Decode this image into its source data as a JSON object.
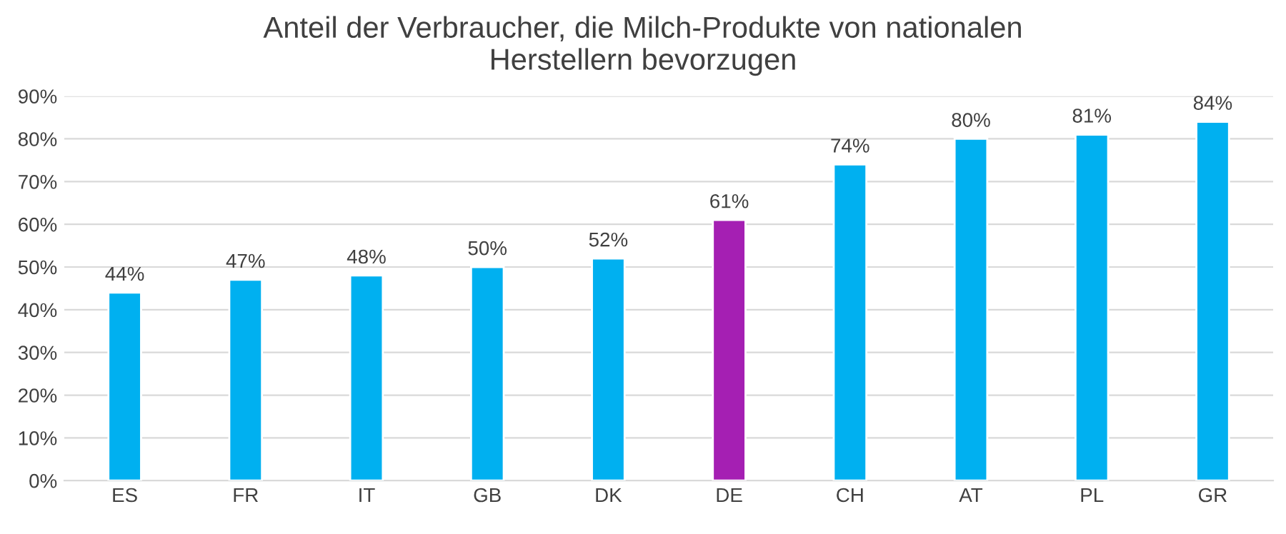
{
  "chart_data": {
    "type": "bar",
    "title": "Anteil der Verbraucher, die Milch-Produkte von nationalen\nHerstellern bevorzugen",
    "categories": [
      "ES",
      "FR",
      "IT",
      "GB",
      "DK",
      "DE",
      "CH",
      "AT",
      "PL",
      "GR"
    ],
    "values": [
      44,
      47,
      48,
      50,
      52,
      61,
      74,
      80,
      81,
      84
    ],
    "colors": [
      "#00b0f0",
      "#00b0f0",
      "#00b0f0",
      "#00b0f0",
      "#00b0f0",
      "#a51fb3",
      "#00b0f0",
      "#00b0f0",
      "#00b0f0",
      "#00b0f0"
    ],
    "value_labels": [
      "44%",
      "47%",
      "48%",
      "50%",
      "52%",
      "61%",
      "74%",
      "80%",
      "81%",
      "84%"
    ],
    "ylim": [
      0,
      90
    ],
    "yticks": [
      {
        "value": 0,
        "label": "0%"
      },
      {
        "value": 10,
        "label": "10%"
      },
      {
        "value": 20,
        "label": "20%"
      },
      {
        "value": 30,
        "label": "30%"
      },
      {
        "value": 40,
        "label": "40%"
      },
      {
        "value": 50,
        "label": "50%"
      },
      {
        "value": 60,
        "label": "60%"
      },
      {
        "value": 70,
        "label": "70%"
      },
      {
        "value": 80,
        "label": "80%"
      },
      {
        "value": 90,
        "label": "90%"
      }
    ],
    "grid": "y"
  }
}
